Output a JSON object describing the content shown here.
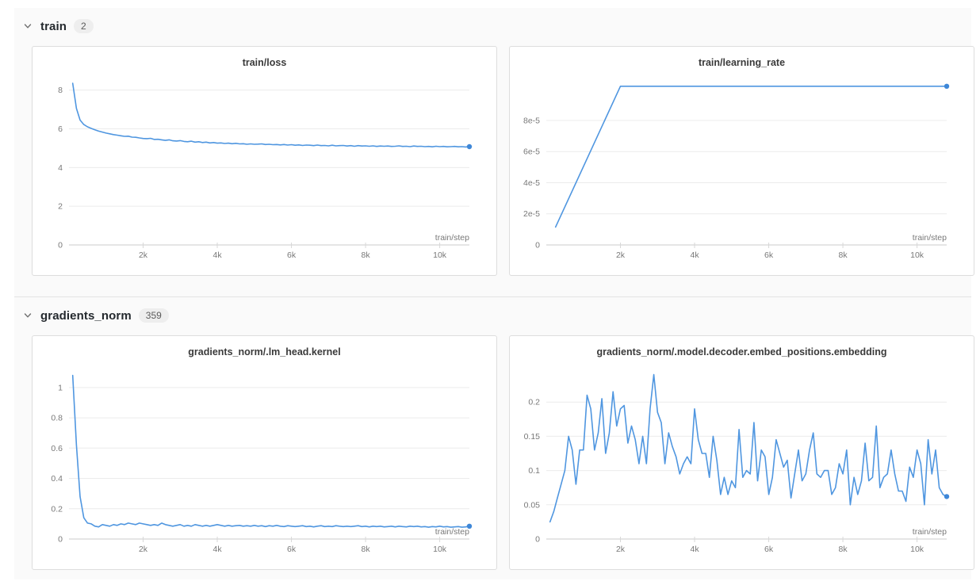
{
  "colors": {
    "line": "#4f96e0",
    "dot": "#3e87d8",
    "grid": "#ececec",
    "axis": "#cbcbcb"
  },
  "sections": [
    {
      "title": "train",
      "count": "2"
    },
    {
      "title": "gradients_norm",
      "count": "359"
    }
  ],
  "chart_data": [
    {
      "type": "line",
      "title": "train/loss",
      "xlabel": "train/step",
      "xlim": [
        0,
        10800
      ],
      "ylim": [
        0,
        8.6
      ],
      "xtick_values": [
        2000,
        4000,
        6000,
        8000,
        10000
      ],
      "xtick_labels": [
        "2k",
        "4k",
        "6k",
        "8k",
        "10k"
      ],
      "ytick_values": [
        0,
        2,
        4,
        6,
        8
      ],
      "ytick_labels": [
        "0",
        "2",
        "4",
        "6",
        "8"
      ],
      "x_start": 100,
      "x_step": 100,
      "end_dot": true,
      "values": [
        8.35,
        7.05,
        6.45,
        6.22,
        6.1,
        6.02,
        5.95,
        5.88,
        5.83,
        5.78,
        5.74,
        5.7,
        5.67,
        5.64,
        5.61,
        5.62,
        5.57,
        5.56,
        5.53,
        5.5,
        5.49,
        5.51,
        5.45,
        5.46,
        5.43,
        5.4,
        5.43,
        5.38,
        5.37,
        5.39,
        5.35,
        5.33,
        5.36,
        5.31,
        5.33,
        5.29,
        5.31,
        5.27,
        5.29,
        5.26,
        5.27,
        5.24,
        5.26,
        5.23,
        5.25,
        5.22,
        5.23,
        5.2,
        5.22,
        5.2,
        5.21,
        5.22,
        5.19,
        5.2,
        5.18,
        5.19,
        5.17,
        5.19,
        5.16,
        5.18,
        5.15,
        5.17,
        5.14,
        5.16,
        5.15,
        5.13,
        5.16,
        5.13,
        5.14,
        5.12,
        5.15,
        5.12,
        5.13,
        5.14,
        5.11,
        5.13,
        5.1,
        5.13,
        5.11,
        5.12,
        5.1,
        5.12,
        5.09,
        5.11,
        5.1,
        5.11,
        5.09,
        5.1,
        5.12,
        5.09,
        5.1,
        5.08,
        5.11,
        5.09,
        5.1,
        5.08,
        5.09,
        5.07,
        5.1,
        5.08,
        5.09,
        5.07,
        5.08,
        5.09,
        5.07,
        5.08,
        5.06,
        5.08
      ]
    },
    {
      "type": "line",
      "title": "train/learning_rate",
      "xlabel": "train/step",
      "xlim": [
        0,
        10800
      ],
      "ylim": [
        0,
        0.000107
      ],
      "xtick_values": [
        2000,
        4000,
        6000,
        8000,
        10000
      ],
      "xtick_labels": [
        "2k",
        "4k",
        "6k",
        "8k",
        "10k"
      ],
      "ytick_values": [
        0,
        2e-05,
        4e-05,
        6e-05,
        8e-05
      ],
      "ytick_labels": [
        "0",
        "2e-5",
        "4e-5",
        "6e-5",
        "8e-5"
      ],
      "x": [
        250,
        2000,
        10800
      ],
      "end_dot": true,
      "values": [
        1.15e-05,
        0.000102,
        0.000102
      ]
    },
    {
      "type": "line",
      "title": "gradients_norm/.lm_head.kernel",
      "xlabel": "train/step",
      "xlim": [
        0,
        10800
      ],
      "ylim": [
        0,
        1.13
      ],
      "xtick_values": [
        2000,
        4000,
        6000,
        8000,
        10000
      ],
      "xtick_labels": [
        "2k",
        "4k",
        "6k",
        "8k",
        "10k"
      ],
      "ytick_values": [
        0,
        0.2,
        0.4,
        0.6,
        0.8,
        1
      ],
      "ytick_labels": [
        "0",
        "0.2",
        "0.4",
        "0.6",
        "0.8",
        "1"
      ],
      "x_start": 100,
      "x_step": 100,
      "end_dot": true,
      "values": [
        1.08,
        0.62,
        0.28,
        0.14,
        0.105,
        0.1,
        0.085,
        0.08,
        0.095,
        0.09,
        0.085,
        0.095,
        0.09,
        0.1,
        0.095,
        0.105,
        0.1,
        0.095,
        0.105,
        0.1,
        0.095,
        0.09,
        0.095,
        0.09,
        0.105,
        0.095,
        0.09,
        0.085,
        0.09,
        0.095,
        0.085,
        0.09,
        0.085,
        0.095,
        0.09,
        0.085,
        0.09,
        0.085,
        0.09,
        0.095,
        0.09,
        0.085,
        0.09,
        0.085,
        0.088,
        0.09,
        0.085,
        0.088,
        0.085,
        0.09,
        0.085,
        0.088,
        0.082,
        0.088,
        0.085,
        0.09,
        0.085,
        0.082,
        0.088,
        0.085,
        0.082,
        0.085,
        0.088,
        0.082,
        0.085,
        0.08,
        0.085,
        0.088,
        0.082,
        0.085,
        0.082,
        0.088,
        0.085,
        0.082,
        0.085,
        0.082,
        0.085,
        0.088,
        0.082,
        0.085,
        0.08,
        0.085,
        0.082,
        0.085,
        0.08,
        0.082,
        0.085,
        0.08,
        0.085,
        0.082,
        0.08,
        0.085,
        0.082,
        0.085,
        0.08,
        0.082,
        0.078,
        0.082,
        0.08,
        0.085,
        0.08,
        0.082,
        0.078,
        0.08,
        0.082,
        0.078,
        0.08,
        0.085
      ]
    },
    {
      "type": "line",
      "title": "gradients_norm/.model.decoder.embed_positions.embedding",
      "xlabel": "train/step",
      "xlim": [
        0,
        10800
      ],
      "ylim": [
        0,
        0.25
      ],
      "xtick_values": [
        2000,
        4000,
        6000,
        8000,
        10000
      ],
      "xtick_labels": [
        "2k",
        "4k",
        "6k",
        "8k",
        "10k"
      ],
      "ytick_values": [
        0,
        0.05,
        0.1,
        0.15,
        0.2
      ],
      "ytick_labels": [
        "0",
        "0.05",
        "0.1",
        "0.15",
        "0.2"
      ],
      "x_start": 100,
      "x_step": 100,
      "end_dot": true,
      "values": [
        0.025,
        0.04,
        0.06,
        0.08,
        0.1,
        0.15,
        0.13,
        0.08,
        0.13,
        0.13,
        0.21,
        0.19,
        0.13,
        0.155,
        0.205,
        0.125,
        0.155,
        0.215,
        0.165,
        0.19,
        0.195,
        0.14,
        0.165,
        0.145,
        0.11,
        0.15,
        0.11,
        0.19,
        0.24,
        0.185,
        0.17,
        0.11,
        0.155,
        0.135,
        0.12,
        0.095,
        0.11,
        0.12,
        0.11,
        0.19,
        0.145,
        0.125,
        0.125,
        0.09,
        0.15,
        0.115,
        0.065,
        0.09,
        0.065,
        0.085,
        0.075,
        0.16,
        0.09,
        0.1,
        0.095,
        0.17,
        0.085,
        0.13,
        0.12,
        0.065,
        0.09,
        0.145,
        0.125,
        0.105,
        0.115,
        0.06,
        0.095,
        0.13,
        0.085,
        0.095,
        0.13,
        0.155,
        0.095,
        0.09,
        0.1,
        0.1,
        0.065,
        0.075,
        0.11,
        0.095,
        0.13,
        0.05,
        0.09,
        0.065,
        0.085,
        0.14,
        0.085,
        0.09,
        0.165,
        0.075,
        0.09,
        0.095,
        0.13,
        0.095,
        0.07,
        0.07,
        0.055,
        0.105,
        0.09,
        0.13,
        0.11,
        0.05,
        0.145,
        0.095,
        0.13,
        0.075,
        0.065,
        0.062
      ]
    }
  ]
}
